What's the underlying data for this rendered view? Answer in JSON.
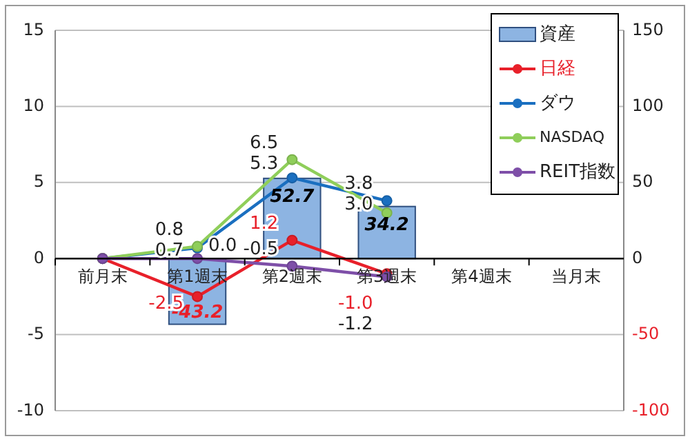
{
  "chart_data": {
    "type": "line",
    "categories": [
      "前月末",
      "第1週末",
      "第2週末",
      "第3週末",
      "第4週末",
      "当月末"
    ],
    "ylim": [
      -10,
      15
    ],
    "yticks": [
      -10,
      -5,
      0,
      5,
      10,
      15
    ],
    "y2lim": [
      -100,
      150
    ],
    "y2ticks": [
      -100,
      -50,
      0,
      50,
      100,
      150
    ],
    "grid": "y",
    "legend": "top right",
    "marker": "circle",
    "series": [
      {
        "name": "資産",
        "type": "bar",
        "axis": "y2",
        "color": "#8db4e2",
        "values": [
          null,
          -43.2,
          52.7,
          34.2,
          null,
          null
        ],
        "value_labels": [
          null,
          "-43.2",
          "52.7",
          "34.2",
          null,
          null
        ]
      },
      {
        "name": "日経",
        "color": "#e8202a",
        "values": [
          0,
          -2.5,
          1.2,
          -1.0,
          null,
          null
        ],
        "value_labels": [
          null,
          "-2.5",
          "1.2",
          "-1.0",
          null,
          null
        ]
      },
      {
        "name": "ダウ",
        "color": "#1a6fc0",
        "values": [
          0,
          0.7,
          5.3,
          3.8,
          null,
          null
        ],
        "value_labels": [
          null,
          "0.7",
          "5.3",
          "3.8",
          null,
          null
        ]
      },
      {
        "name": "NASDAQ",
        "color": "#8fce5a",
        "values": [
          0,
          0.8,
          6.5,
          3.0,
          null,
          null
        ],
        "value_labels": [
          null,
          "0.8",
          "6.5",
          "3.0",
          null,
          null
        ]
      },
      {
        "name": "REIT指数",
        "color": "#7e4fa8",
        "values": [
          0,
          0.0,
          -0.5,
          -1.2,
          null,
          null
        ],
        "value_labels": [
          null,
          "0.0",
          "-0.5",
          "-1.2",
          null,
          null
        ]
      }
    ]
  }
}
